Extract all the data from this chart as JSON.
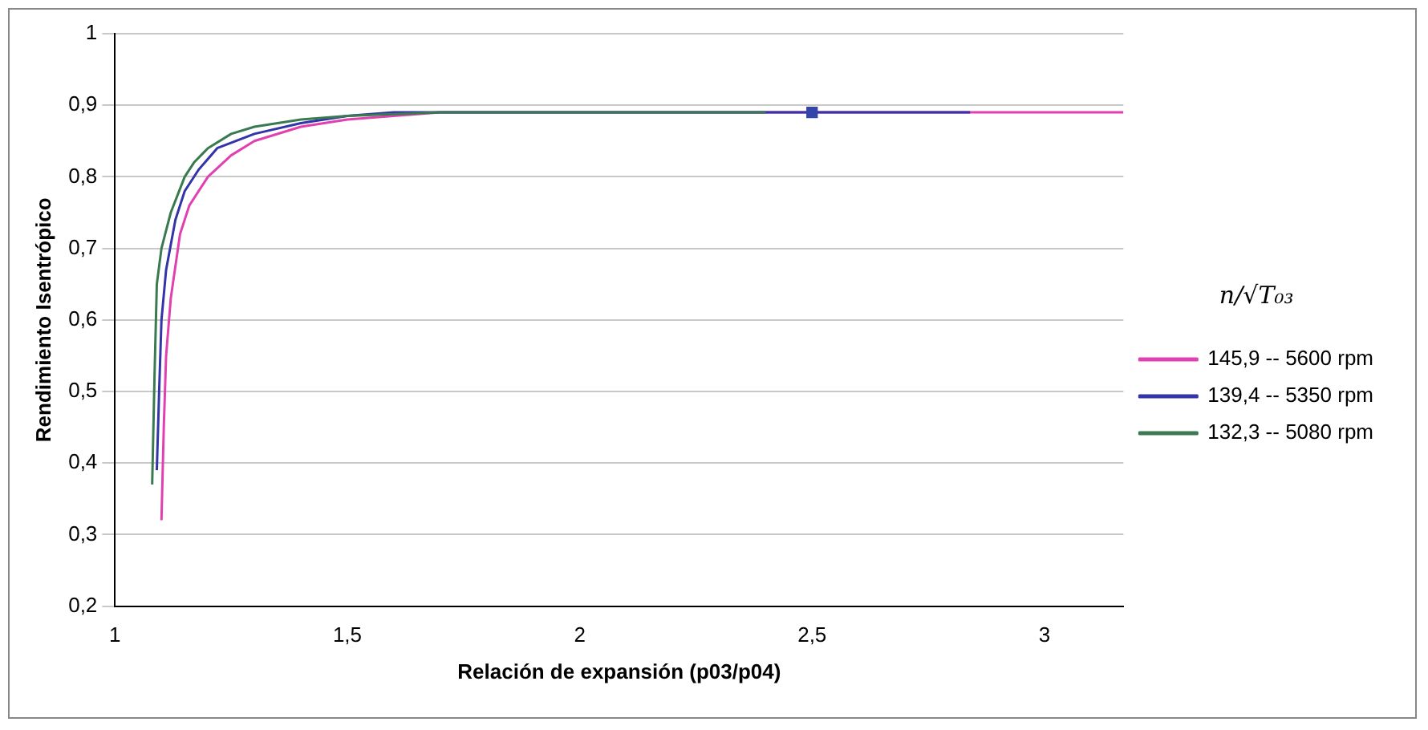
{
  "chart_data": {
    "type": "line",
    "xlabel": "Relación de expansión (p03/p04)",
    "ylabel": "Rendimiento Isentrópico",
    "legend_title": "n/√T₀₃",
    "xlim": [
      1,
      3.17
    ],
    "xticks": [
      {
        "value": 1,
        "label": "1"
      },
      {
        "value": 1.5,
        "label": "1,5"
      },
      {
        "value": 2,
        "label": "2"
      },
      {
        "value": 2.5,
        "label": "2,5"
      },
      {
        "value": 3,
        "label": "3"
      }
    ],
    "ylim": [
      0.2,
      1
    ],
    "yticks": [
      {
        "value": 0.2,
        "label": "0,2"
      },
      {
        "value": 0.3,
        "label": "0,3"
      },
      {
        "value": 0.4,
        "label": "0,4"
      },
      {
        "value": 0.5,
        "label": "0,5"
      },
      {
        "value": 0.6,
        "label": "0,6"
      },
      {
        "value": 0.7,
        "label": "0,7"
      },
      {
        "value": 0.8,
        "label": "0,8"
      },
      {
        "value": 0.9,
        "label": "0,9"
      },
      {
        "value": 1,
        "label": "1"
      }
    ],
    "grid": "y",
    "legend": "right",
    "marker": "none",
    "line_style": "solid",
    "series": [
      {
        "name": "145,9 -- 5600 rpm",
        "color": "#e040b0",
        "x": [
          1.1,
          1.105,
          1.11,
          1.12,
          1.14,
          1.16,
          1.2,
          1.25,
          1.3,
          1.4,
          1.5,
          1.7,
          3.17
        ],
        "values": [
          0.32,
          0.45,
          0.55,
          0.63,
          0.72,
          0.76,
          0.8,
          0.83,
          0.85,
          0.87,
          0.88,
          0.89,
          0.89
        ]
      },
      {
        "name": "139,4 -- 5350 rpm",
        "color": "#3333aa",
        "x": [
          1.09,
          1.095,
          1.1,
          1.11,
          1.13,
          1.15,
          1.18,
          1.22,
          1.3,
          1.4,
          1.5,
          1.6,
          2.84
        ],
        "values": [
          0.39,
          0.5,
          0.6,
          0.67,
          0.74,
          0.78,
          0.81,
          0.84,
          0.86,
          0.875,
          0.885,
          0.89,
          0.89
        ]
      },
      {
        "name": "132,3 -- 5080 rpm",
        "color": "#3a7a50",
        "x": [
          1.08,
          1.085,
          1.09,
          1.1,
          1.12,
          1.15,
          1.17,
          1.2,
          1.25,
          1.3,
          1.4,
          1.5,
          1.7,
          2.4
        ],
        "values": [
          0.37,
          0.52,
          0.65,
          0.7,
          0.75,
          0.8,
          0.82,
          0.84,
          0.86,
          0.87,
          0.88,
          0.885,
          0.89,
          0.89
        ]
      },
      {
        "type": "scatter",
        "color": "#3344aa",
        "marker": "square",
        "x": [
          2.5
        ],
        "values": [
          0.89
        ]
      }
    ]
  }
}
